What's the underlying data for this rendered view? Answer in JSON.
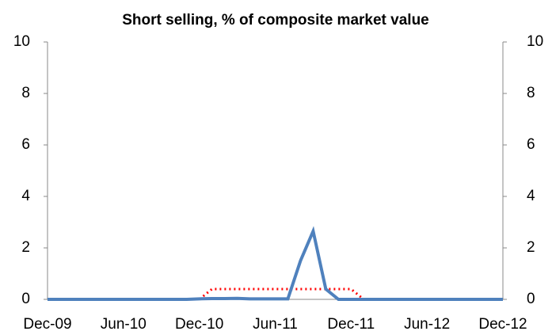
{
  "chart_data": {
    "type": "line",
    "title": "Short selling, % of composite market value",
    "categories": [
      "Dec-09",
      null,
      null,
      null,
      null,
      null,
      "Jun-10",
      null,
      null,
      null,
      null,
      null,
      "Dec-10",
      null,
      null,
      null,
      null,
      null,
      "Jun-11",
      null,
      null,
      null,
      null,
      null,
      "Dec-11",
      null,
      null,
      null,
      null,
      null,
      "Jun-12",
      null,
      null,
      null,
      null,
      null,
      "Dec-12"
    ],
    "series": [
      {
        "color": "#4f81bd",
        "style": "solid",
        "values": [
          0,
          0,
          0,
          0,
          0,
          0,
          0,
          0,
          0,
          0,
          0,
          0,
          0.02,
          0.03,
          0.03,
          0.04,
          0.02,
          0.02,
          0.02,
          0.02,
          1.5,
          2.65,
          0.4,
          0,
          0,
          0,
          0,
          0,
          0,
          0,
          0,
          0,
          0,
          0,
          0,
          0,
          0
        ]
      },
      {
        "color": "#ff0000",
        "style": "dotted",
        "values": [
          0,
          0,
          0,
          0,
          0,
          0,
          0,
          0,
          0,
          0,
          0,
          0,
          0,
          0.4,
          0.4,
          0.4,
          0.4,
          0.4,
          0.4,
          0.4,
          0.4,
          0.4,
          0.4,
          0.4,
          0.4,
          0,
          0,
          0,
          0,
          0,
          0,
          0,
          0,
          0,
          0,
          0,
          0
        ]
      }
    ],
    "ylim": [
      0,
      10
    ],
    "yticks": [
      0,
      2,
      4,
      6,
      8,
      10
    ],
    "y2lim": [
      0,
      10
    ],
    "y2ticks": [
      0,
      2,
      4,
      6,
      8,
      10
    ],
    "grid": false
  }
}
